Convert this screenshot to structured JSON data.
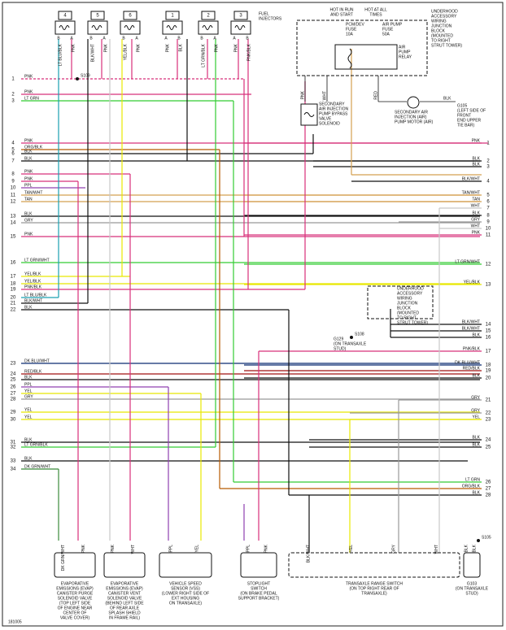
{
  "injectors": {
    "title": [
      "FUEL",
      "INJECTORS"
    ],
    "items": [
      {
        "number": "4",
        "pins": [
          "B",
          "A"
        ],
        "wires": [
          "LT BLU/BLK",
          "PNK"
        ]
      },
      {
        "number": "5",
        "pins": [
          "B",
          "A"
        ],
        "wires": [
          "BLK/WHT",
          "PNK"
        ]
      },
      {
        "number": "6",
        "pins": [
          "B",
          "A"
        ],
        "wires": [
          "YEL/BLK",
          "PNK"
        ]
      },
      {
        "number": "1",
        "pins": [
          "A",
          "B"
        ],
        "wires": [
          "PNK",
          "BLK"
        ]
      },
      {
        "number": "2",
        "pins": [
          "B",
          "A"
        ],
        "wires": [
          "LT GRN/BLK",
          "PNK"
        ]
      },
      {
        "number": "3",
        "pins": [
          "A",
          "B"
        ],
        "wires": [
          "PNK",
          "PNK/BLK"
        ]
      }
    ]
  },
  "splices": [
    "S109",
    "S108",
    "S105"
  ],
  "fuse_block": {
    "hot_run": [
      "HOT IN RUN",
      "AND START"
    ],
    "hot_all": [
      "HOT AT ALL",
      "TIMES"
    ],
    "fuse1": [
      "PCM/DEV",
      "FUSE",
      "10A"
    ],
    "fuse2": [
      "AIR PUMP",
      "FUSE",
      "50A"
    ],
    "relay": [
      "AIR",
      "PUMP",
      "RELAY"
    ],
    "block": [
      "UNDERHOOD",
      "ACCESSORY",
      "WIRING",
      "JUNCTION",
      "BLOCK",
      "(MOUNTED",
      "TO RIGHT",
      "STRUT TOWER)"
    ],
    "wires": [
      "PNK",
      "WHT",
      "RED"
    ]
  },
  "bypass_valve": [
    "SECONDARY",
    "AIR INJECTION",
    "PUMP BYPASS",
    "VALVE",
    "SOLENOID"
  ],
  "air_pump": {
    "label": [
      "SECONDARY AIR",
      "INJECTION (AIR)",
      "PUMP MOTOR (AIR)"
    ],
    "wire": "BLK",
    "ground": [
      "G105",
      "(LEFT SIDE OF",
      "FRONT",
      "END UPPER",
      "TIE BAR)"
    ]
  },
  "block2": [
    "UNDERHOOD",
    "ACCESSORY",
    "WIRING",
    "JUNCTION",
    "BLOCK",
    "(MOUNTED",
    "TO RIGHT",
    "STRUT TOWER)"
  ],
  "ground_g129": [
    "G129",
    "(ON TRANSAXLE",
    "STUD)"
  ],
  "left_wires": [
    {
      "number": "1",
      "label": "PNK"
    },
    {
      "number": "2",
      "label": "PNK"
    },
    {
      "number": "3",
      "label": "LT GRN"
    },
    {
      "number": "4",
      "label": "PNK"
    },
    {
      "number": "5",
      "label": "ORG/BLK"
    },
    {
      "number": "6",
      "label": "BLK"
    },
    {
      "number": "7",
      "label": "BLK"
    },
    {
      "number": "8",
      "label": "PNK"
    },
    {
      "number": "9",
      "label": "PNK"
    },
    {
      "number": "10",
      "label": "PPL"
    },
    {
      "number": "11",
      "label": "TAN/WHT"
    },
    {
      "number": "12",
      "label": "TAN"
    },
    {
      "number": "13",
      "label": "BLK"
    },
    {
      "number": "14",
      "label": "GRY"
    },
    {
      "number": "15",
      "label": "PNK"
    },
    {
      "number": "16",
      "label": "LT GRN/WHT"
    },
    {
      "number": "17",
      "label": "YEL/BLK"
    },
    {
      "number": "18",
      "label": "YEL/BLK"
    },
    {
      "number": "19",
      "label": "PNK/BLK"
    },
    {
      "number": "20",
      "label": "LT BLU/BLK"
    },
    {
      "number": "21",
      "label": "BLK/WHT"
    },
    {
      "number": "22",
      "label": "BLK"
    },
    {
      "number": "23",
      "label": "DK BLU/WHT"
    },
    {
      "number": "24",
      "label": "RED/BLK"
    },
    {
      "number": "25",
      "label": "BLK"
    },
    {
      "number": "26",
      "label": "PPL"
    },
    {
      "number": "27",
      "label": "YEL"
    },
    {
      "number": "28",
      "label": "GRY"
    },
    {
      "number": "29",
      "label": "YEL"
    },
    {
      "number": "30",
      "label": "YEL"
    },
    {
      "number": "31",
      "label": "BLK"
    },
    {
      "number": "32",
      "label": "LT GRN/BLK"
    },
    {
      "number": "33",
      "label": "BLK"
    },
    {
      "number": "34",
      "label": "DK GRN/WHT"
    }
  ],
  "right_wires": [
    {
      "number": "1",
      "label": "PNK"
    },
    {
      "number": "2",
      "label": "BLK"
    },
    {
      "number": "3",
      "label": "BLK"
    },
    {
      "number": "4",
      "label": "BLK/WHT"
    },
    {
      "number": "5",
      "label": "TAN/WHT"
    },
    {
      "number": "6",
      "label": "TAN"
    },
    {
      "number": "7",
      "label": "WHT"
    },
    {
      "number": "8",
      "label": "BLK"
    },
    {
      "number": "9",
      "label": "GRY"
    },
    {
      "number": "10",
      "label": "WHT"
    },
    {
      "number": "11",
      "label": "PNK"
    },
    {
      "number": "12",
      "label": "LT GRN/WHT"
    },
    {
      "number": "13",
      "label": "YEL/BLK"
    },
    {
      "number": "14",
      "label": "BLK/WHT"
    },
    {
      "number": "15",
      "label": "BLK/WHT"
    },
    {
      "number": "16",
      "label": "BLK"
    },
    {
      "number": "17",
      "label": "PNK/BLK"
    },
    {
      "number": "18",
      "label": "DK BLU/WHT"
    },
    {
      "number": "19",
      "label": "RED/BLK"
    },
    {
      "number": "20",
      "label": "BLK"
    },
    {
      "number": "21",
      "label": "GRY"
    },
    {
      "number": "22",
      "label": "GRY"
    },
    {
      "number": "23",
      "label": "YEL"
    },
    {
      "number": "24",
      "label": "BLK"
    },
    {
      "number": "25",
      "label": "BLK"
    },
    {
      "number": "26",
      "label": "LT GRN"
    },
    {
      "number": "27",
      "label": "ORG/BLK"
    },
    {
      "number": "28",
      "label": "BLK"
    }
  ],
  "components": [
    {
      "label": [
        "EVAPORATIVE",
        "EMISSIONS (EVAP)",
        "CANISTER PURGE",
        "SOLENOID VALVE",
        "(TOP LEFT SIDE",
        "OF ENGINE NEAR",
        "CENTER OF",
        "VALVE COVER)"
      ],
      "wires": [
        "DK GRN/WHT",
        "PNK"
      ]
    },
    {
      "label": [
        "EVAPORATIVE",
        "EMISSIONS (EVAP)",
        "CANISTER VENT",
        "SOLENOID VALVE",
        "(BEHIND LEFT SIDE",
        "OF REAR AXLE",
        "SPLASH SHIELD",
        "IN FRAME RAIL)"
      ],
      "wires": [
        "PNK",
        "WHT"
      ]
    },
    {
      "label": [
        "VEHICLE SPEED",
        "SENSOR (VSS)",
        "(LOWER RIGHT SIDE OF",
        "EXT HOUSING",
        "ON TRANSAXLE)"
      ],
      "wires": [
        "PPL",
        "YEL"
      ]
    },
    {
      "label": [
        "STOPLIGHT",
        "SWITCH",
        "(ON BRAKE PEDAL",
        "SUPPORT BRACKET)"
      ],
      "wires": [
        "PPL",
        "PNK"
      ]
    },
    {
      "label": [
        "TRANSAXLE RANGE SWITCH",
        "(ON TOP RIGHT REAR OF",
        "TRANSAXLE)"
      ],
      "wires": [
        "BLK/WHT",
        "YEL",
        "GRY",
        "WHT"
      ]
    },
    {
      "label": [
        "G103",
        "(ON TRANSAXLE",
        "STUD)"
      ],
      "wires": [
        "BLK",
        "BLK"
      ]
    }
  ],
  "footer": "181005"
}
